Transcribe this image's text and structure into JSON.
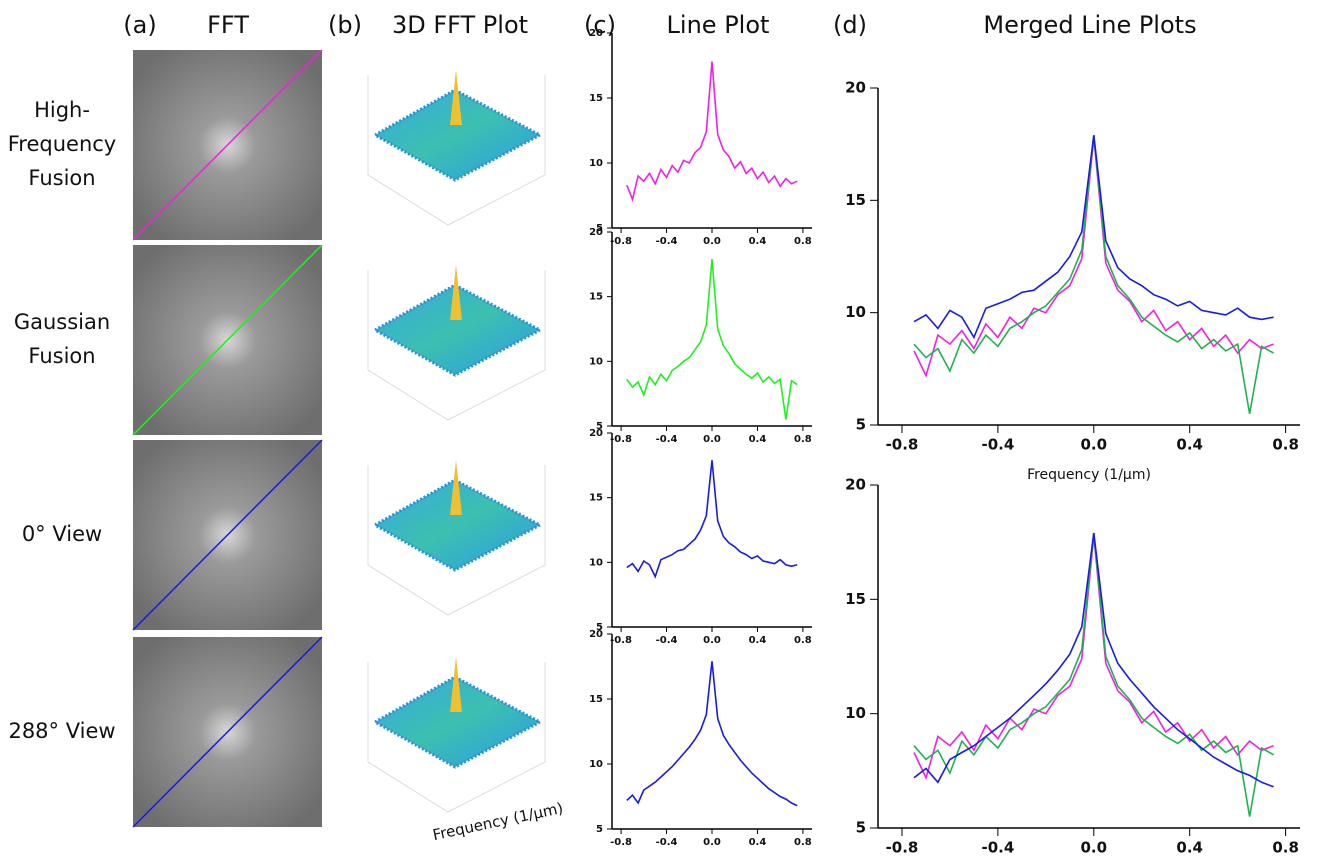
{
  "panels": {
    "a_label": "(a)",
    "a_title": "FFT",
    "b_label": "(b)",
    "b_title": "3D FFT Plot",
    "c_label": "(c)",
    "c_title": "Line Plot",
    "d_label": "(d)",
    "d_title": "Merged Line Plots",
    "rows": [
      [
        "High-",
        "Frequency",
        "Fusion"
      ],
      [
        "Gaussian",
        "Fusion"
      ],
      [
        "0° View"
      ],
      [
        "288° View"
      ]
    ],
    "b_xlabel": "Frequency (1/μm)"
  },
  "chart_data": [
    {
      "type": "line",
      "xlim": [
        -0.88,
        0.88
      ],
      "ylim": [
        5,
        20
      ],
      "xticks": [
        -0.8,
        -0.4,
        {
          "value": 0,
          "label": "0.0"
        },
        0.4,
        0.8
      ],
      "yticks": [
        5,
        10,
        15,
        20
      ],
      "x": [
        -0.75,
        -0.7,
        -0.65,
        -0.6,
        -0.55,
        -0.5,
        -0.45,
        -0.4,
        -0.35,
        -0.3,
        -0.25,
        -0.2,
        -0.15,
        -0.1,
        -0.05,
        0,
        0.05,
        0.1,
        0.15,
        0.2,
        0.25,
        0.3,
        0.35,
        0.4,
        0.45,
        0.5,
        0.55,
        0.6,
        0.65,
        0.7,
        0.75
      ],
      "series": [
        {
          "color": "#ee22dd",
          "values": [
            8.3,
            7.2,
            9.0,
            8.6,
            9.2,
            8.4,
            9.5,
            8.9,
            9.8,
            9.3,
            10.2,
            10.0,
            10.8,
            11.2,
            12.4,
            17.8,
            12.2,
            11.0,
            10.5,
            9.6,
            10.1,
            9.2,
            9.6,
            8.8,
            9.3,
            8.5,
            9.0,
            8.2,
            8.8,
            8.4,
            8.6
          ]
        }
      ]
    },
    {
      "type": "line",
      "xlim": [
        -0.88,
        0.88
      ],
      "ylim": [
        5,
        20
      ],
      "xticks": [
        -0.8,
        -0.4,
        {
          "value": 0,
          "label": "0.0"
        },
        0.4,
        0.8
      ],
      "yticks": [
        5,
        10,
        15,
        20
      ],
      "x": [
        -0.75,
        -0.7,
        -0.65,
        -0.6,
        -0.55,
        -0.5,
        -0.45,
        -0.4,
        -0.35,
        -0.3,
        -0.25,
        -0.2,
        -0.15,
        -0.1,
        -0.05,
        0,
        0.05,
        0.1,
        0.15,
        0.2,
        0.25,
        0.3,
        0.35,
        0.4,
        0.45,
        0.5,
        0.55,
        0.6,
        0.65,
        0.7,
        0.75
      ],
      "series": [
        {
          "color": "#22ee22",
          "values": [
            8.6,
            8.0,
            8.4,
            7.4,
            8.8,
            8.2,
            9.0,
            8.5,
            9.3,
            9.6,
            10.0,
            10.3,
            10.9,
            11.5,
            12.8,
            17.9,
            12.5,
            11.2,
            10.6,
            9.8,
            9.4,
            9.0,
            8.7,
            9.1,
            8.4,
            8.8,
            8.3,
            8.6,
            5.5,
            8.5,
            8.2
          ]
        }
      ]
    },
    {
      "type": "line",
      "xlim": [
        -0.88,
        0.88
      ],
      "ylim": [
        5,
        20
      ],
      "xticks": [
        -0.8,
        -0.4,
        {
          "value": 0,
          "label": "0.0"
        },
        0.4,
        0.8
      ],
      "yticks": [
        5,
        10,
        15,
        20
      ],
      "x": [
        -0.75,
        -0.7,
        -0.65,
        -0.6,
        -0.55,
        -0.5,
        -0.45,
        -0.4,
        -0.35,
        -0.3,
        -0.25,
        -0.2,
        -0.15,
        -0.1,
        -0.05,
        0,
        0.05,
        0.1,
        0.15,
        0.2,
        0.25,
        0.3,
        0.35,
        0.4,
        0.45,
        0.5,
        0.55,
        0.6,
        0.65,
        0.7,
        0.75
      ],
      "series": [
        {
          "color": "#1a1ae0",
          "values": [
            9.6,
            9.9,
            9.3,
            10.1,
            9.8,
            8.9,
            10.2,
            10.4,
            10.6,
            10.9,
            11.0,
            11.4,
            11.8,
            12.5,
            13.6,
            17.9,
            13.2,
            12.0,
            11.5,
            11.2,
            10.8,
            10.6,
            10.3,
            10.5,
            10.1,
            10.0,
            9.9,
            10.2,
            9.8,
            9.7,
            9.8
          ]
        }
      ]
    },
    {
      "type": "line",
      "xlim": [
        -0.88,
        0.88
      ],
      "ylim": [
        5,
        20
      ],
      "xticks": [
        -0.8,
        -0.4,
        {
          "value": 0,
          "label": "0.0"
        },
        0.4,
        0.8
      ],
      "yticks": [
        5,
        10,
        15,
        20
      ],
      "x": [
        -0.75,
        -0.7,
        -0.65,
        -0.6,
        -0.55,
        -0.5,
        -0.45,
        -0.4,
        -0.35,
        -0.3,
        -0.25,
        -0.2,
        -0.15,
        -0.1,
        -0.05,
        0,
        0.05,
        0.1,
        0.15,
        0.2,
        0.25,
        0.3,
        0.35,
        0.4,
        0.45,
        0.5,
        0.55,
        0.6,
        0.65,
        0.7,
        0.75
      ],
      "series": [
        {
          "color": "#1a1ae0",
          "values": [
            7.2,
            7.6,
            7.0,
            8.0,
            8.3,
            8.6,
            9.0,
            9.4,
            9.8,
            10.3,
            10.8,
            11.3,
            11.9,
            12.6,
            13.8,
            17.9,
            13.5,
            12.2,
            11.5,
            10.9,
            10.3,
            9.8,
            9.3,
            8.9,
            8.5,
            8.1,
            7.8,
            7.5,
            7.3,
            7.0,
            6.8
          ]
        }
      ]
    },
    {
      "type": "line",
      "xlim": [
        -0.9,
        0.86
      ],
      "ylim": [
        5,
        20
      ],
      "xlabel": "Frequency (1/μm)",
      "xticks": [
        -0.8,
        -0.4,
        {
          "value": 0,
          "label": "0.0"
        },
        0.4,
        0.8
      ],
      "yticks": [
        5,
        10,
        15,
        20
      ],
      "x": [
        -0.75,
        -0.7,
        -0.65,
        -0.6,
        -0.55,
        -0.5,
        -0.45,
        -0.4,
        -0.35,
        -0.3,
        -0.25,
        -0.2,
        -0.15,
        -0.1,
        -0.05,
        0,
        0.05,
        0.1,
        0.15,
        0.2,
        0.25,
        0.3,
        0.35,
        0.4,
        0.45,
        0.5,
        0.55,
        0.6,
        0.65,
        0.7,
        0.75
      ],
      "series": [
        {
          "color": "#ee22dd",
          "values": [
            8.3,
            7.2,
            9.0,
            8.6,
            9.2,
            8.4,
            9.5,
            8.9,
            9.8,
            9.3,
            10.2,
            10.0,
            10.8,
            11.2,
            12.4,
            17.8,
            12.2,
            11.0,
            10.5,
            9.6,
            10.1,
            9.2,
            9.6,
            8.8,
            9.3,
            8.5,
            9.0,
            8.2,
            8.8,
            8.4,
            8.6
          ]
        },
        {
          "color": "#22b050",
          "values": [
            8.6,
            8.0,
            8.4,
            7.4,
            8.8,
            8.2,
            9.0,
            8.5,
            9.3,
            9.6,
            10.0,
            10.3,
            10.9,
            11.5,
            12.8,
            17.9,
            12.5,
            11.2,
            10.6,
            9.8,
            9.4,
            9.0,
            8.7,
            9.1,
            8.4,
            8.8,
            8.3,
            8.6,
            5.5,
            8.5,
            8.2
          ]
        },
        {
          "color": "#1a1ae0",
          "values": [
            9.6,
            9.9,
            9.3,
            10.1,
            9.8,
            8.9,
            10.2,
            10.4,
            10.6,
            10.9,
            11.0,
            11.4,
            11.8,
            12.5,
            13.6,
            17.9,
            13.2,
            12.0,
            11.5,
            11.2,
            10.8,
            10.6,
            10.3,
            10.5,
            10.1,
            10.0,
            9.9,
            10.2,
            9.8,
            9.7,
            9.8
          ]
        }
      ]
    },
    {
      "type": "line",
      "xlim": [
        -0.9,
        0.86
      ],
      "ylim": [
        5,
        20
      ],
      "xticks": [
        -0.8,
        -0.4,
        {
          "value": 0,
          "label": "0.0"
        },
        0.4,
        0.8
      ],
      "yticks": [
        5,
        10,
        15,
        20
      ],
      "x": [
        -0.75,
        -0.7,
        -0.65,
        -0.6,
        -0.55,
        -0.5,
        -0.45,
        -0.4,
        -0.35,
        -0.3,
        -0.25,
        -0.2,
        -0.15,
        -0.1,
        -0.05,
        0,
        0.05,
        0.1,
        0.15,
        0.2,
        0.25,
        0.3,
        0.35,
        0.4,
        0.45,
        0.5,
        0.55,
        0.6,
        0.65,
        0.7,
        0.75
      ],
      "series": [
        {
          "color": "#ee22dd",
          "values": [
            8.3,
            7.2,
            9.0,
            8.6,
            9.2,
            8.4,
            9.5,
            8.9,
            9.8,
            9.3,
            10.2,
            10.0,
            10.8,
            11.2,
            12.4,
            17.8,
            12.2,
            11.0,
            10.5,
            9.6,
            10.1,
            9.2,
            9.6,
            8.8,
            9.3,
            8.5,
            9.0,
            8.2,
            8.8,
            8.4,
            8.6
          ]
        },
        {
          "color": "#22b050",
          "values": [
            8.6,
            8.0,
            8.4,
            7.4,
            8.8,
            8.2,
            9.0,
            8.5,
            9.3,
            9.6,
            10.0,
            10.3,
            10.9,
            11.5,
            12.8,
            17.9,
            12.5,
            11.2,
            10.6,
            9.8,
            9.4,
            9.0,
            8.7,
            9.1,
            8.4,
            8.8,
            8.3,
            8.6,
            5.5,
            8.5,
            8.2
          ]
        },
        {
          "color": "#1a1ae0",
          "values": [
            7.2,
            7.6,
            7.0,
            8.0,
            8.3,
            8.6,
            9.0,
            9.4,
            9.8,
            10.3,
            10.8,
            11.3,
            11.9,
            12.6,
            13.8,
            17.9,
            13.5,
            12.2,
            11.5,
            10.9,
            10.3,
            9.8,
            9.3,
            8.9,
            8.5,
            8.1,
            7.8,
            7.5,
            7.3,
            7.0,
            6.8
          ]
        }
      ]
    }
  ]
}
